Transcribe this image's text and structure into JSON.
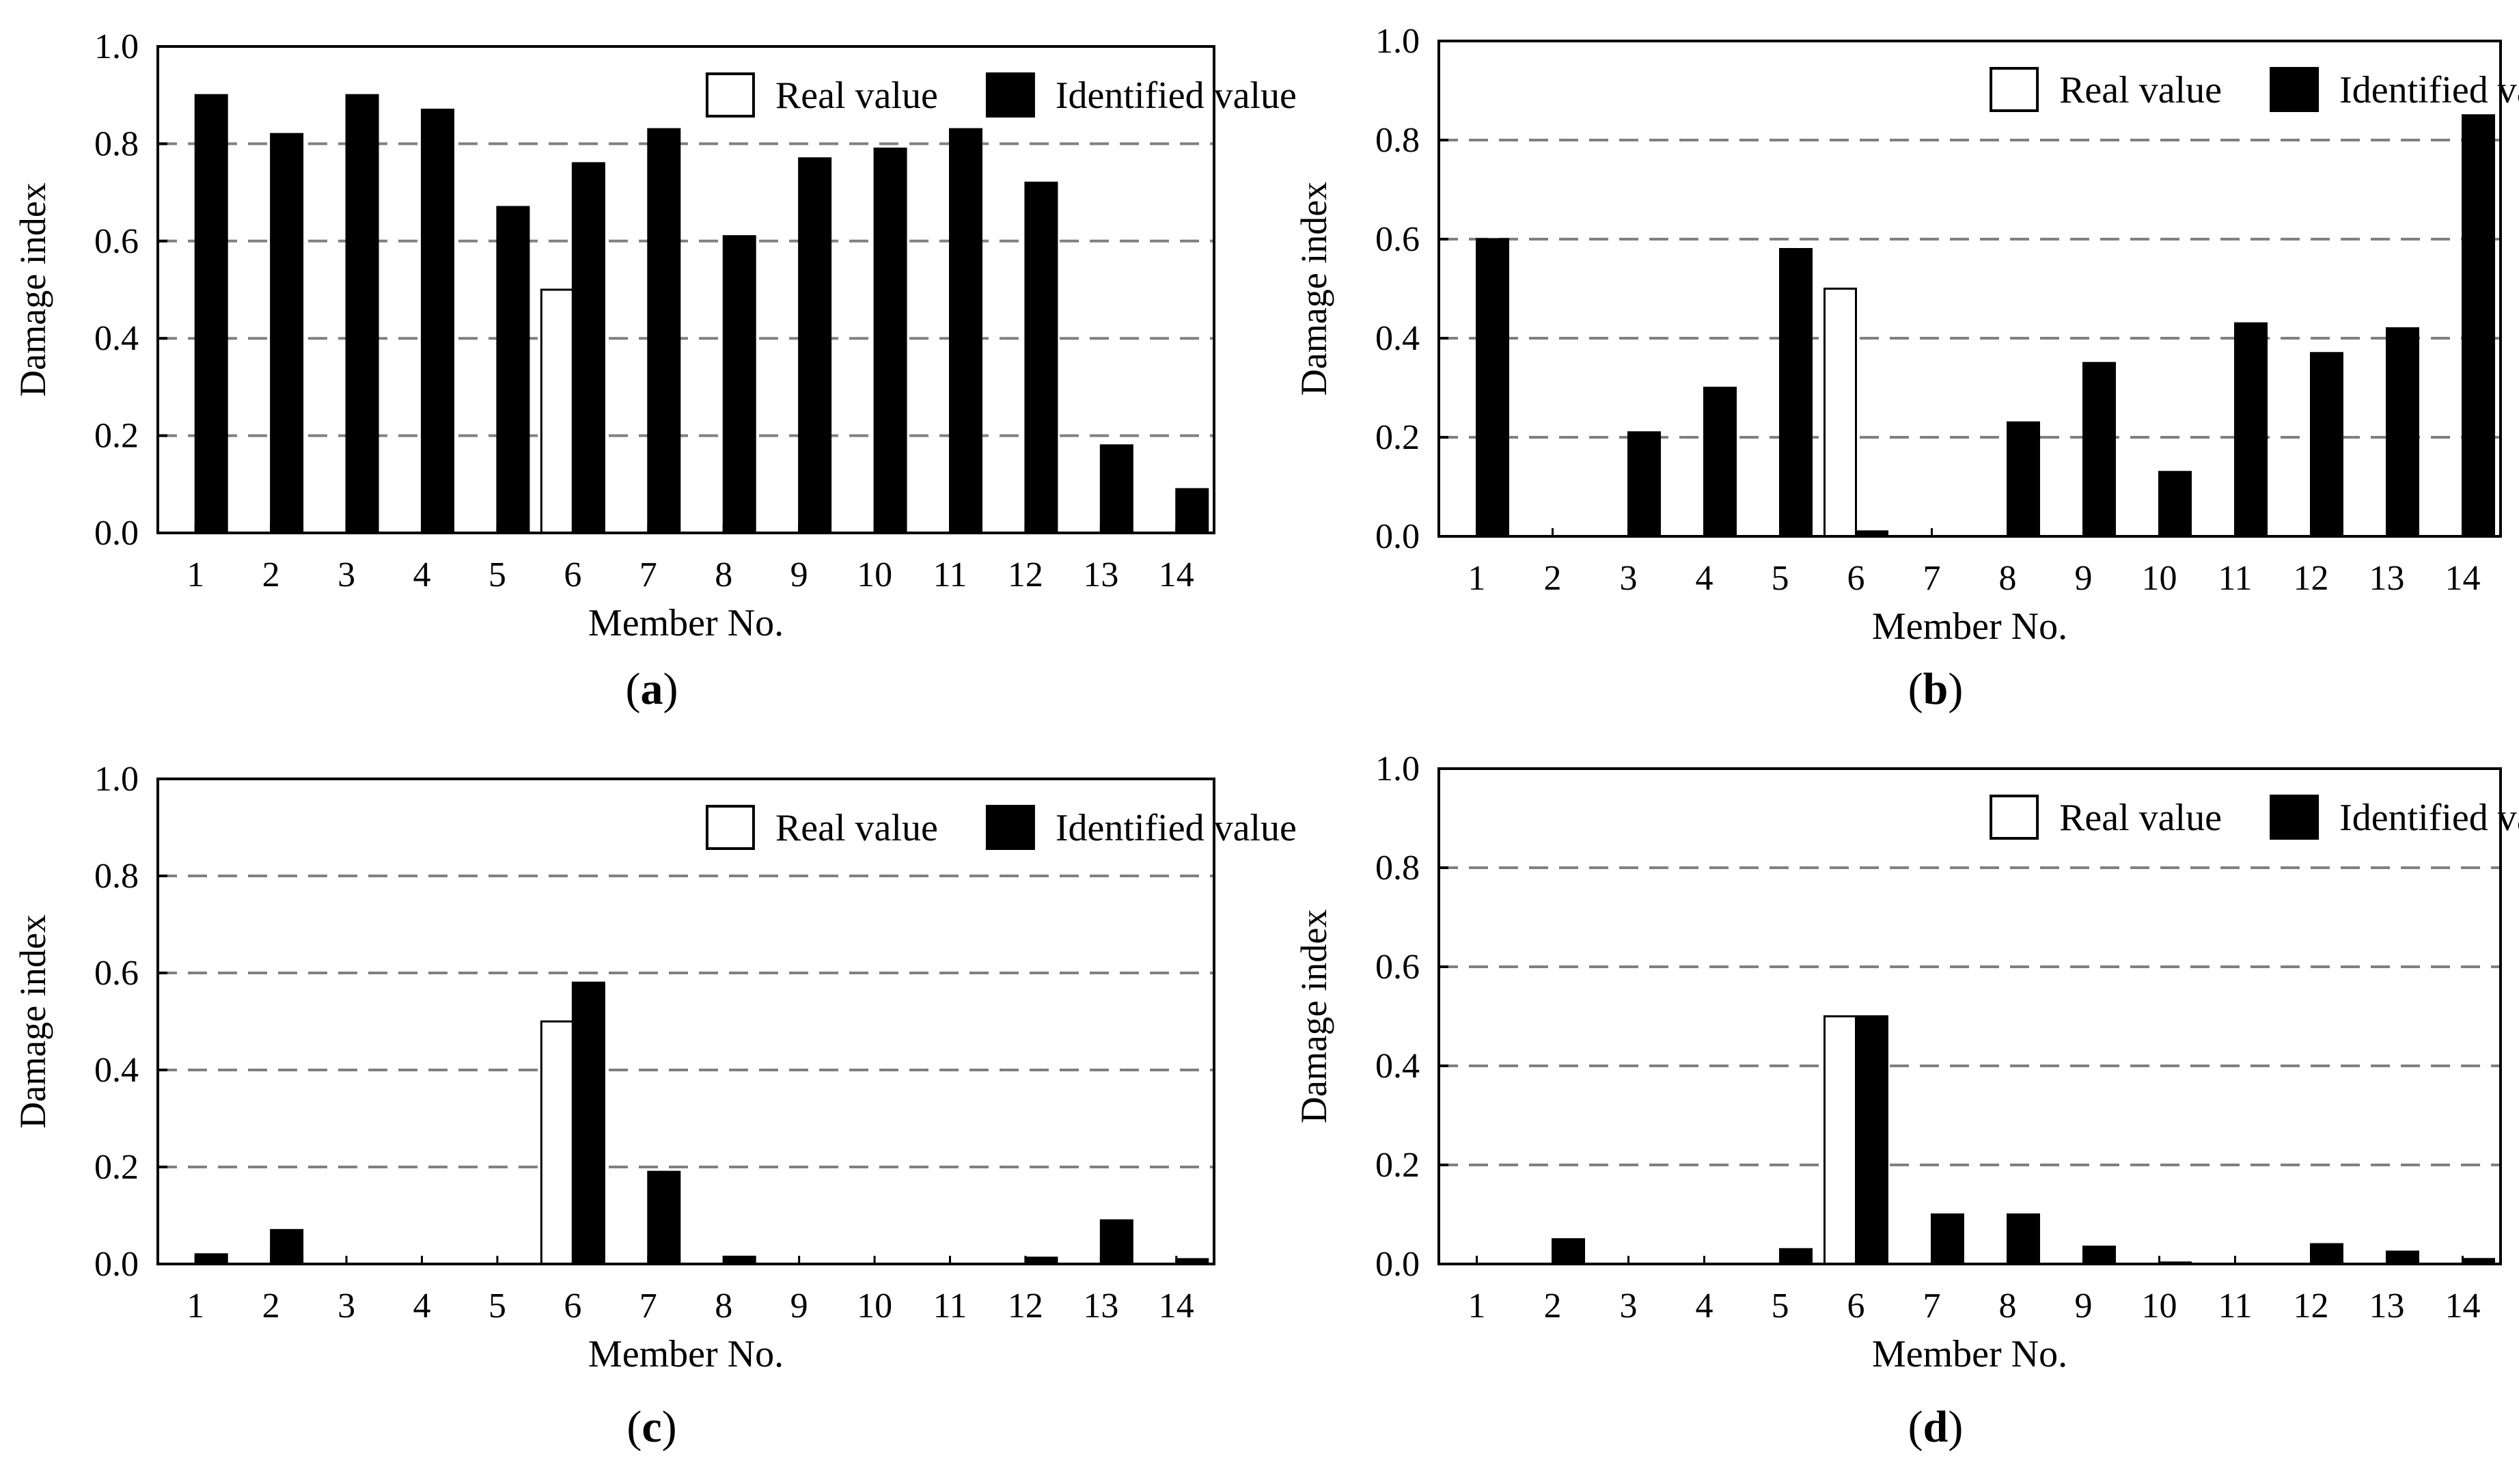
{
  "figure": {
    "colors": {
      "real": "#ffffff",
      "identified": "#000000",
      "axis": "#000000",
      "grid": "#808080"
    }
  },
  "chart_data": [
    {
      "panel": "a",
      "type": "bar",
      "ylabel": "Damage index",
      "xlabel": "Member No.",
      "ylim": [
        0,
        1.0
      ],
      "yticks": [
        "0.0",
        "0.2",
        "0.4",
        "0.6",
        "0.8",
        "1.0"
      ],
      "grid": "horizontal dashed",
      "legend": "top-right",
      "categories": [
        "1",
        "2",
        "3",
        "4",
        "5",
        "6",
        "7",
        "8",
        "9",
        "10",
        "11",
        "12",
        "13",
        "14"
      ],
      "series": [
        {
          "name": "Real value",
          "values": [
            0,
            0,
            0,
            0,
            0,
            0.5,
            0,
            0,
            0,
            0,
            0,
            0,
            0,
            0
          ]
        },
        {
          "name": "Identified value",
          "values": [
            0.9,
            0.82,
            0.9,
            0.87,
            0.67,
            0.76,
            0.83,
            0.61,
            0.77,
            0.79,
            0.83,
            0.72,
            0.18,
            0.09
          ]
        }
      ],
      "label_text": "a"
    },
    {
      "panel": "b",
      "type": "bar",
      "ylabel": "Damage index",
      "xlabel": "Member No.",
      "ylim": [
        0,
        1.0
      ],
      "yticks": [
        "0.0",
        "0.2",
        "0.4",
        "0.6",
        "0.8",
        "1.0"
      ],
      "grid": "horizontal dashed",
      "legend": "top-right",
      "categories": [
        "1",
        "2",
        "3",
        "4",
        "5",
        "6",
        "7",
        "8",
        "9",
        "10",
        "11",
        "12",
        "13",
        "14"
      ],
      "series": [
        {
          "name": "Real value",
          "values": [
            0,
            0,
            0,
            0,
            0,
            0.5,
            0,
            0,
            0,
            0,
            0,
            0,
            0,
            0
          ]
        },
        {
          "name": "Identified value",
          "values": [
            0.6,
            0,
            0.21,
            0.3,
            0.58,
            0.01,
            0,
            0.23,
            0.35,
            0.13,
            0.43,
            0.37,
            0.42,
            0.85
          ]
        }
      ],
      "label_text": "b"
    },
    {
      "panel": "c",
      "type": "bar",
      "ylabel": "Damage index",
      "xlabel": "Member No.",
      "ylim": [
        0,
        1.0
      ],
      "yticks": [
        "0.0",
        "0.2",
        "0.4",
        "0.6",
        "0.8",
        "1.0"
      ],
      "grid": "horizontal dashed",
      "legend": "top-right",
      "categories": [
        "1",
        "2",
        "3",
        "4",
        "5",
        "6",
        "7",
        "8",
        "9",
        "10",
        "11",
        "12",
        "13",
        "14"
      ],
      "series": [
        {
          "name": "Real value",
          "values": [
            0,
            0,
            0,
            0,
            0,
            0.5,
            0,
            0,
            0,
            0,
            0,
            0,
            0,
            0
          ]
        },
        {
          "name": "Identified value",
          "values": [
            0.02,
            0.07,
            0,
            0,
            0,
            0.58,
            0.19,
            0.015,
            0,
            0,
            0,
            0.013,
            0.09,
            0.01
          ]
        }
      ],
      "label_text": "c"
    },
    {
      "panel": "d",
      "type": "bar",
      "ylabel": "Damage index",
      "xlabel": "Member No.",
      "ylim": [
        0,
        1.0
      ],
      "yticks": [
        "0.0",
        "0.2",
        "0.4",
        "0.6",
        "0.8",
        "1.0"
      ],
      "grid": "horizontal dashed",
      "legend": "top-right",
      "categories": [
        "1",
        "2",
        "3",
        "4",
        "5",
        "6",
        "7",
        "8",
        "9",
        "10",
        "11",
        "12",
        "13",
        "14"
      ],
      "series": [
        {
          "name": "Real value",
          "values": [
            0,
            0,
            0,
            0,
            0,
            0.5,
            0,
            0,
            0,
            0,
            0,
            0,
            0,
            0
          ]
        },
        {
          "name": "Identified value",
          "values": [
            0,
            0.05,
            0,
            0,
            0.03,
            0.5,
            0.1,
            0.1,
            0.035,
            0.003,
            0,
            0.04,
            0.025,
            0.01
          ]
        }
      ],
      "label_text": "d"
    }
  ]
}
